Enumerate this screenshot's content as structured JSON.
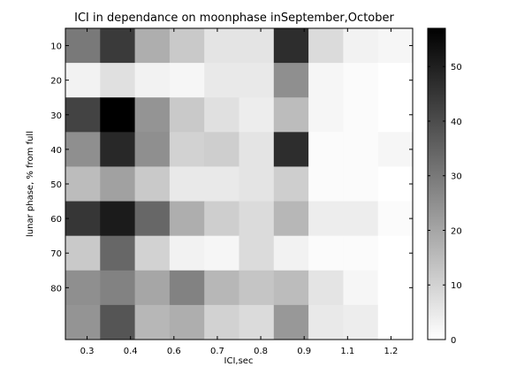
{
  "chart_data": {
    "type": "heatmap",
    "title": "ICI in dependance on moonphase inSeptember,October",
    "xlabel": "ICI,sec",
    "ylabel": "lunar phase, % from full",
    "x_tick_labels": [
      "0.3",
      "0.4",
      "0.6",
      "0.7",
      "0.8",
      "0.9",
      "1.1",
      "1.2"
    ],
    "y_tick_labels": [
      "10",
      "20",
      "30",
      "40",
      "50",
      "60",
      "70",
      "80"
    ],
    "colormap": "gray_reversed",
    "colorbar": {
      "min": 0,
      "max": 57,
      "ticks": [
        "0",
        "10",
        "20",
        "30",
        "40",
        "50"
      ]
    },
    "grid": false,
    "matrix": [
      [
        30,
        44,
        18,
        12,
        6,
        6,
        47,
        8,
        3,
        2
      ],
      [
        3,
        7,
        3,
        2,
        5,
        5,
        25,
        2,
        1,
        0
      ],
      [
        42,
        57,
        24,
        12,
        7,
        4,
        15,
        2,
        1,
        0
      ],
      [
        25,
        48,
        25,
        10,
        11,
        6,
        47,
        1,
        1,
        2
      ],
      [
        15,
        21,
        12,
        5,
        5,
        6,
        11,
        1,
        1,
        0
      ],
      [
        45,
        51,
        34,
        18,
        11,
        8,
        16,
        4,
        4,
        1
      ],
      [
        12,
        34,
        10,
        3,
        2,
        8,
        3,
        1,
        1,
        0
      ],
      [
        25,
        28,
        20,
        28,
        16,
        13,
        15,
        6,
        2,
        0
      ],
      [
        24,
        38,
        16,
        18,
        10,
        8,
        23,
        5,
        4,
        0
      ]
    ]
  }
}
